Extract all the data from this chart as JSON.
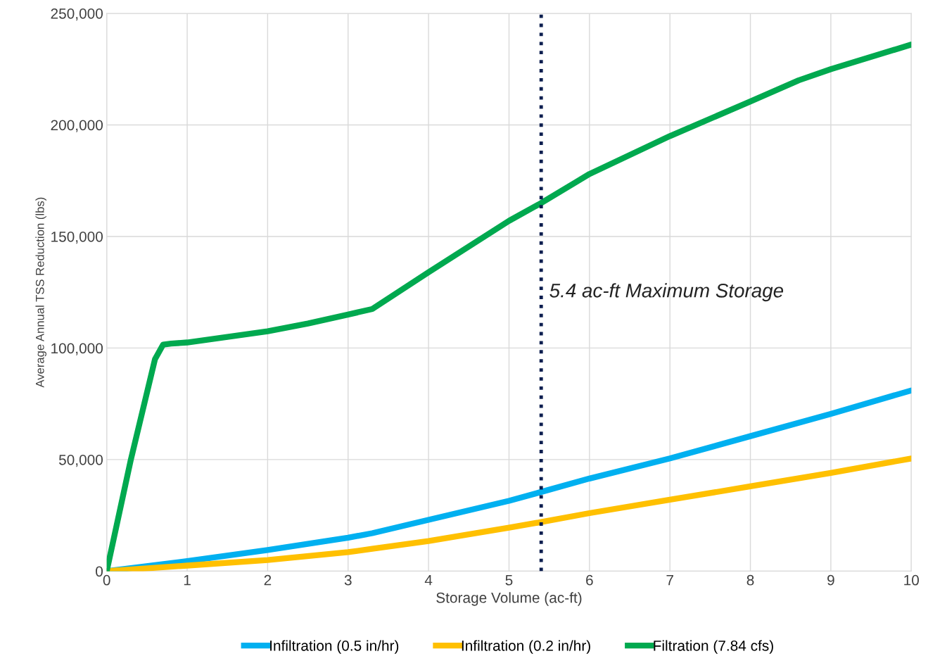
{
  "chart_data": {
    "type": "line",
    "xlabel": "Storage Volume (ac-ft)",
    "ylabel": "Average Annual TSS Reduction (lbs)",
    "xlim": [
      0,
      10
    ],
    "xticks": [
      0,
      1,
      2,
      3,
      4,
      5,
      6,
      7,
      8,
      9,
      10
    ],
    "ylim": [
      0,
      250000
    ],
    "yticks": [
      {
        "value": 0,
        "label": "0"
      },
      {
        "value": 50000,
        "label": "50,000"
      },
      {
        "value": 100000,
        "label": "100,000"
      },
      {
        "value": 150000,
        "label": "150,000"
      },
      {
        "value": 200000,
        "label": "200,000"
      },
      {
        "value": 250000,
        "label": "250,000"
      }
    ],
    "grid": true,
    "legend": "bottom",
    "marker": "none",
    "line_style": "solid",
    "series": [
      {
        "name": "Infiltration (0.5 in/hr)",
        "color": "#00b0f0",
        "x": [
          0,
          1,
          2,
          3,
          3.3,
          4,
          5,
          5.4,
          6,
          7,
          8,
          9,
          10
        ],
        "values": [
          0,
          4500,
          9500,
          15000,
          17000,
          23000,
          31500,
          35500,
          41500,
          50500,
          60500,
          70500,
          81000
        ]
      },
      {
        "name": "Infiltration (0.2 in/hr)",
        "color": "#ffc000",
        "x": [
          0,
          1,
          2,
          3,
          3.3,
          4,
          5,
          5.4,
          6,
          7,
          8,
          9,
          10
        ],
        "values": [
          0,
          2500,
          5000,
          8500,
          10000,
          13500,
          19500,
          22000,
          26000,
          32000,
          38000,
          44000,
          50500
        ]
      },
      {
        "name": "Filtration (7.84 cfs)",
        "color": "#00a94f",
        "x": [
          0,
          0.3,
          0.6,
          0.7,
          0.8,
          1,
          2,
          2.5,
          3,
          3.3,
          4,
          5,
          5.4,
          6,
          7,
          8,
          8.6,
          9,
          10
        ],
        "values": [
          0,
          50000,
          95000,
          101500,
          102000,
          102500,
          107500,
          111000,
          115000,
          117500,
          134000,
          157000,
          165000,
          178000,
          195000,
          210500,
          220000,
          225000,
          236000
        ]
      }
    ],
    "ref_lines": [
      {
        "axis": "x",
        "value": 5.4,
        "label": "5.4 ac-ft Maximum Storage",
        "color": "#0c1e4f",
        "line_style": "dotted"
      }
    ]
  }
}
